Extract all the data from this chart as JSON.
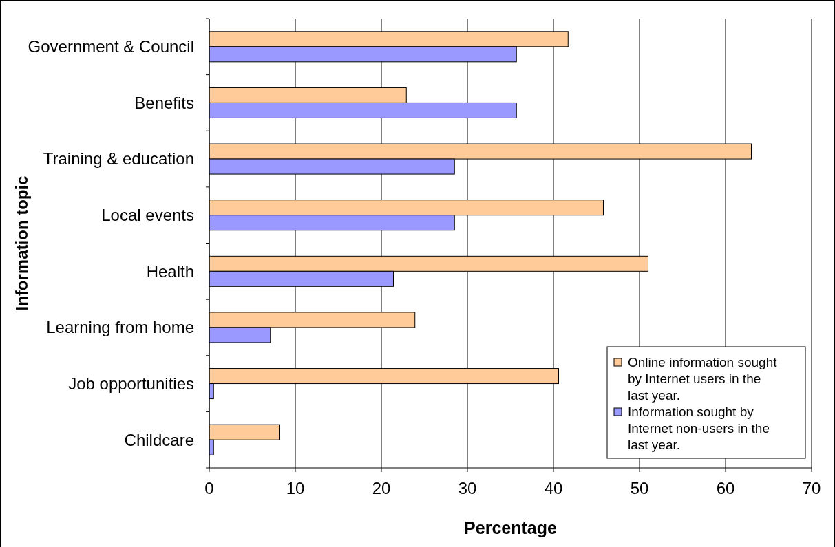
{
  "chart_data": {
    "type": "bar",
    "orientation": "horizontal",
    "categories": [
      "Government & Council",
      "Benefits",
      "Training & education",
      "Local events",
      "Health",
      "Learning from home",
      "Job opportunities",
      "Childcare"
    ],
    "series": [
      {
        "name": "Online information sought by Internet users in the last year.",
        "color": "#ffcc99",
        "values": [
          41.7,
          22.9,
          63.0,
          45.8,
          51.0,
          23.9,
          40.6,
          8.2
        ]
      },
      {
        "name": "Information sought by Internet non-users in the last year.",
        "color": "#9999ff",
        "values": [
          35.7,
          35.7,
          28.5,
          28.5,
          21.4,
          7.1,
          0.5,
          0.5
        ]
      }
    ],
    "xlabel": "Percentage",
    "ylabel": "Information topic",
    "xlim": [
      0,
      70
    ],
    "xticks": [
      0,
      10,
      20,
      30,
      40,
      50,
      60,
      70
    ],
    "grid": "x",
    "legend": "bottom right"
  }
}
